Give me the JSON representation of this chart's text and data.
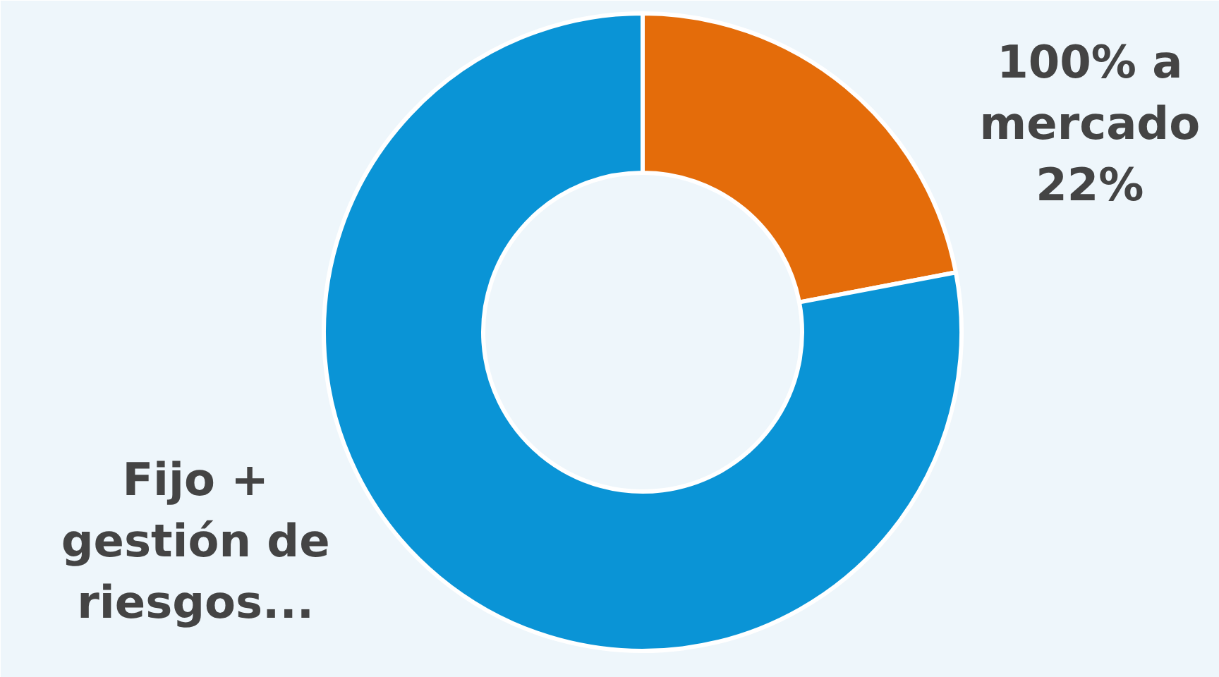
{
  "chart_data": {
    "type": "donut",
    "categories": [
      "100% a mercado",
      "Fijo + gestión de riesgos..."
    ],
    "values": [
      22,
      78
    ],
    "colors": [
      "#e46c0a",
      "#0a94d6"
    ],
    "value_labels": [
      "22%",
      null
    ]
  }
}
